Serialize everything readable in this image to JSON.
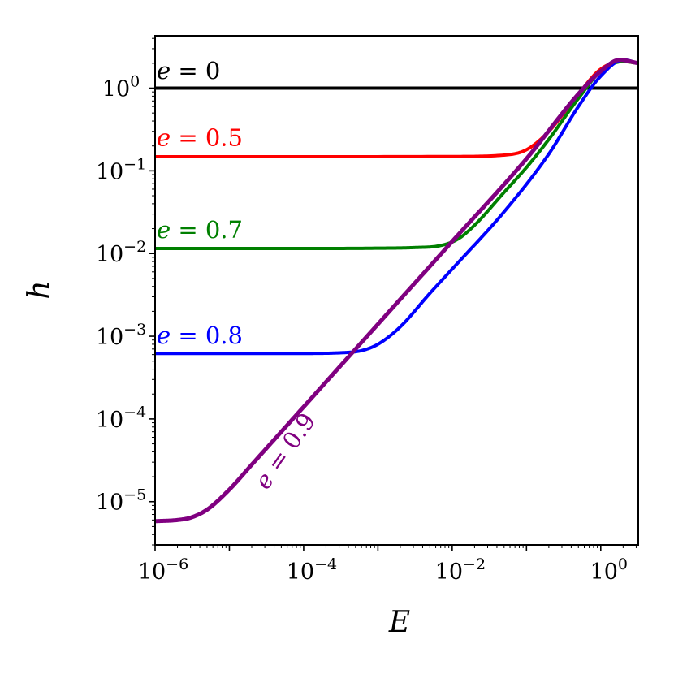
{
  "chart_data": {
    "type": "line",
    "title": "",
    "xlabel": "E",
    "ylabel": "h",
    "xscale": "log",
    "yscale": "log",
    "xlim": [
      1e-06,
      3.2
    ],
    "ylim": [
      3e-06,
      4.3
    ],
    "grid": false,
    "legend": "none",
    "x_ticks": [
      {
        "base": "10",
        "exp": "−6",
        "value": 1e-06
      },
      {
        "base": "10",
        "exp": "−4",
        "value": 0.0001
      },
      {
        "base": "10",
        "exp": "−2",
        "value": 0.01
      },
      {
        "base": "10",
        "exp": "0",
        "value": 1
      }
    ],
    "y_ticks": [
      {
        "base": "10",
        "exp": "−5",
        "value": 1e-05
      },
      {
        "base": "10",
        "exp": "−4",
        "value": 0.0001
      },
      {
        "base": "10",
        "exp": "−3",
        "value": 0.001
      },
      {
        "base": "10",
        "exp": "−2",
        "value": 0.01
      },
      {
        "base": "10",
        "exp": "−1",
        "value": 0.1
      },
      {
        "base": "10",
        "exp": "0",
        "value": 1
      }
    ],
    "series": [
      {
        "name": "e = 0",
        "label_var": "e",
        "label_rest": " = 0",
        "color": "#000000",
        "x": [
          1e-06,
          0.0001,
          0.01,
          1,
          3.2
        ],
        "y": [
          1.0,
          1.0,
          1.0,
          1.0,
          1.0
        ]
      },
      {
        "name": "e = 0.5",
        "label_var": "e",
        "label_rest": " = 0.5",
        "color": "#ff0000",
        "x": [
          1e-06,
          0.0001,
          0.01,
          0.05,
          0.1,
          0.2,
          0.5,
          1,
          2,
          3.2
        ],
        "y": [
          0.148,
          0.148,
          0.149,
          0.155,
          0.18,
          0.3,
          0.85,
          1.7,
          2.1,
          2.0
        ]
      },
      {
        "name": "e = 0.7",
        "label_var": "e",
        "label_rest": " = 0.7",
        "color": "#008000",
        "x": [
          1e-06,
          0.0001,
          0.001,
          0.003,
          0.007,
          0.012,
          0.02,
          0.05,
          0.1,
          0.2,
          0.5,
          1,
          2,
          3.2
        ],
        "y": [
          0.0115,
          0.0115,
          0.0116,
          0.0118,
          0.0125,
          0.015,
          0.022,
          0.055,
          0.11,
          0.24,
          0.75,
          1.6,
          2.1,
          2.0
        ]
      },
      {
        "name": "e = 0.8",
        "label_var": "e",
        "label_rest": " = 0.8",
        "color": "#0000ff",
        "x": [
          1e-06,
          0.0001,
          0.0003,
          0.0006,
          0.001,
          0.002,
          0.005,
          0.01,
          0.05,
          0.2,
          0.5,
          1,
          2,
          3.2
        ],
        "y": [
          0.00062,
          0.00062,
          0.00063,
          0.00067,
          0.0008,
          0.0013,
          0.0033,
          0.0065,
          0.032,
          0.16,
          0.6,
          1.4,
          2.2,
          2.0
        ]
      },
      {
        "name": "e = 0.9",
        "label_var": "e",
        "label_rest": " = 0.9",
        "color": "#800080",
        "x": [
          1e-06,
          2e-06,
          3e-06,
          5e-06,
          1e-05,
          2e-05,
          0.0001,
          0.001,
          0.01,
          0.1,
          0.5,
          1,
          1.8,
          3.2
        ],
        "y": [
          5.8e-06,
          6e-06,
          6.4e-06,
          8e-06,
          1.4e-05,
          2.8e-05,
          0.00014,
          0.0014,
          0.014,
          0.14,
          0.85,
          1.6,
          2.2,
          2.0
        ]
      }
    ],
    "annotations": [
      {
        "series": 0,
        "x": 1.05e-06,
        "y": 1.3,
        "rotation": 0
      },
      {
        "series": 1,
        "x": 1.05e-06,
        "y": 0.2,
        "rotation": 0
      },
      {
        "series": 2,
        "x": 1.05e-06,
        "y": 0.0155,
        "rotation": 0
      },
      {
        "series": 3,
        "x": 1.05e-06,
        "y": 0.00082,
        "rotation": 0
      },
      {
        "series": 4,
        "x": 3.2e-05,
        "y": 1.35e-05,
        "rotation": -55
      }
    ]
  }
}
